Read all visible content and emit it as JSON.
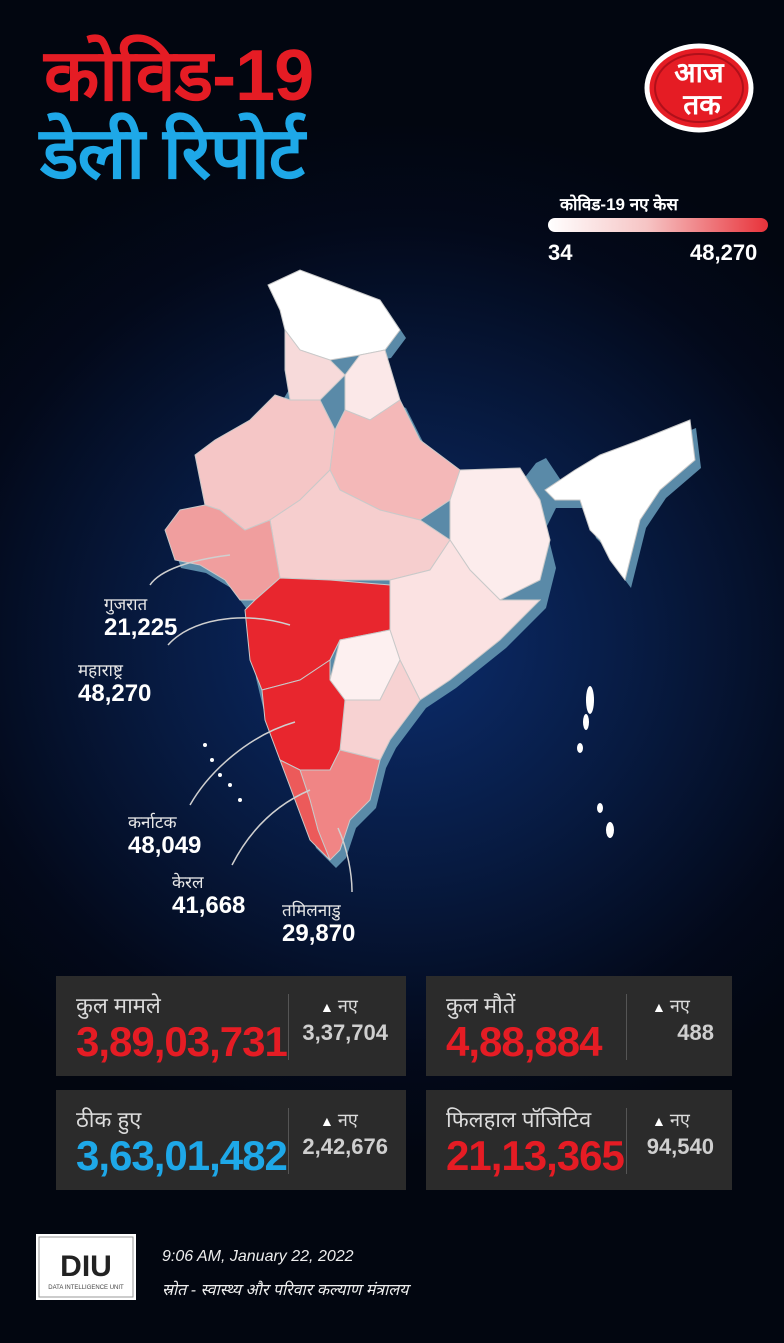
{
  "title": {
    "line1": "कोविड-19",
    "line2": "डेली रिपोर्ट",
    "line1_color": "#e51c24",
    "line2_color": "#1ea8e8"
  },
  "brand": {
    "logo_text_top": "आज",
    "logo_text_bottom": "तक"
  },
  "legend": {
    "title": "कोविड-19 नए केस",
    "min": "34",
    "max": "48,270",
    "low_color": "#ffffff",
    "high_color": "#e8323a"
  },
  "states": [
    {
      "name": "गुजरात",
      "value": "21,225"
    },
    {
      "name": "महाराष्ट्र",
      "value": "48,270"
    },
    {
      "name": "कर्नाटक",
      "value": "48,049"
    },
    {
      "name": "केरल",
      "value": "41,668"
    },
    {
      "name": "तमिलनाडु",
      "value": "29,870"
    }
  ],
  "stats": [
    {
      "label": "कुल मामले",
      "value": "3,89,03,731",
      "new_label": "नए",
      "new_value": "3,37,704",
      "color": "#e51c24"
    },
    {
      "label": "कुल मौतें",
      "value": "4,88,884",
      "new_label": "नए",
      "new_value": "488",
      "color": "#e51c24"
    },
    {
      "label": "ठीक हुए",
      "value": "3,63,01,482",
      "new_label": "नए",
      "new_value": "2,42,676",
      "color": "#1ea8e8"
    },
    {
      "label": "फिलहाल पॉजिटिव",
      "value": "21,13,365",
      "new_label": "नए",
      "new_value": "94,540",
      "color": "#e51c24"
    }
  ],
  "footer": {
    "diu_logo": "DIU",
    "diu_sub": "DATA INTELLIGENCE UNIT",
    "timestamp": "9:06 AM, January 22, 2022",
    "source": "स्रोत - स्वास्थ्य और परिवार कल्याण मंत्रालय"
  }
}
